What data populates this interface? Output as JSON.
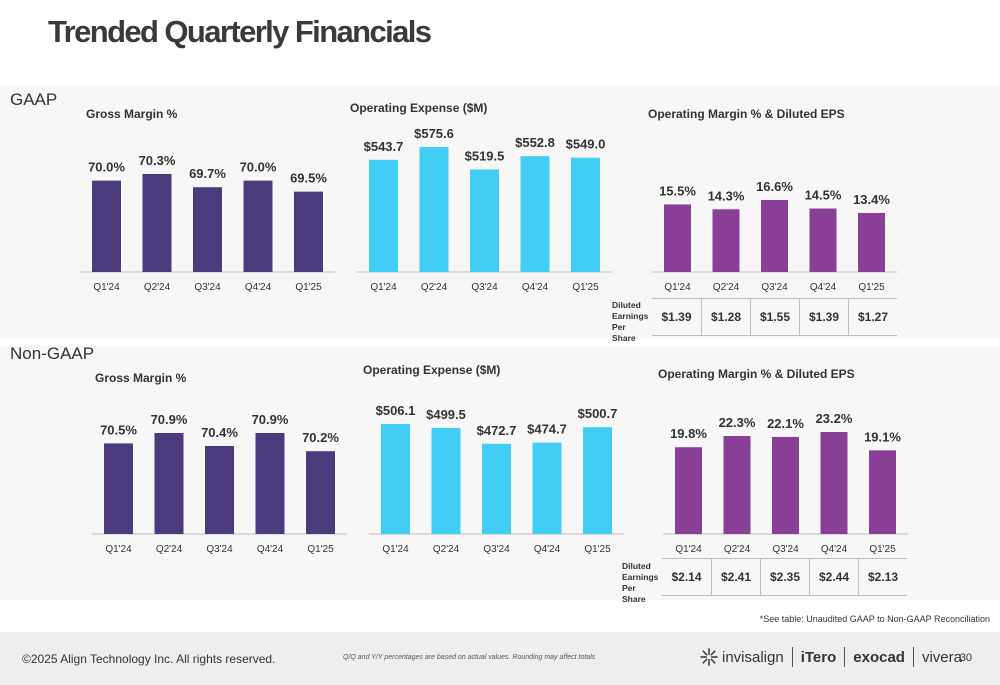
{
  "page": {
    "title": "Trended Quarterly Financials",
    "gaap_label": "GAAP",
    "nongaap_label": "Non-GAAP",
    "footnote": "*See table: Unaudited GAAP to Non-GAAP Reconciliation",
    "copyright": "©2025 Align Technology Inc. All rights reserved.",
    "disclaimer": "Q/Q and Y/Y percentages are based on actual values. Rounding may affect totals",
    "page_number": "30",
    "brands": [
      "invisalign",
      "iTero",
      "exocad",
      "vivera"
    ],
    "eps_label": [
      "Diluted",
      "Earnings",
      "Per Share"
    ]
  },
  "colors": {
    "gross_margin": "#4b3a7c",
    "opex": "#41cdf4",
    "op_margin": "#8a3f96",
    "band": "#f7f7f7"
  },
  "chart_data": [
    {
      "id": "gaap-gross-margin",
      "type": "bar",
      "title": "Gross Margin %",
      "categories": [
        "Q1'24",
        "Q2'24",
        "Q3'24",
        "Q4'24",
        "Q1'25"
      ],
      "values": [
        70.0,
        70.3,
        69.7,
        70.0,
        69.5
      ],
      "labels": [
        "70.0%",
        "70.3%",
        "69.7%",
        "70.0%",
        "69.5%"
      ],
      "color": "#4b3a7c"
    },
    {
      "id": "gaap-opex",
      "type": "bar",
      "title": "Operating Expense ($M)",
      "categories": [
        "Q1'24",
        "Q2'24",
        "Q3'24",
        "Q4'24",
        "Q1'25"
      ],
      "values": [
        543.7,
        575.6,
        519.5,
        552.8,
        549.0
      ],
      "labels": [
        "$543.7",
        "$575.6",
        "$519.5",
        "$552.8",
        "$549.0"
      ],
      "color": "#41cdf4"
    },
    {
      "id": "gaap-op-margin",
      "type": "bar",
      "title": "Operating Margin % & Diluted EPS",
      "categories": [
        "Q1'24",
        "Q2'24",
        "Q3'24",
        "Q4'24",
        "Q1'25"
      ],
      "values": [
        15.5,
        14.3,
        16.6,
        14.5,
        13.4
      ],
      "labels": [
        "15.5%",
        "14.3%",
        "16.6%",
        "14.5%",
        "13.4%"
      ],
      "eps": [
        "$1.39",
        "$1.28",
        "$1.55",
        "$1.39",
        "$1.27"
      ],
      "color": "#8a3f96"
    },
    {
      "id": "nongaap-gross-margin",
      "type": "bar",
      "title": "Gross Margin %",
      "categories": [
        "Q1'24",
        "Q2'24",
        "Q3'24",
        "Q4'24",
        "Q1'25"
      ],
      "values": [
        70.5,
        70.9,
        70.4,
        70.9,
        70.2
      ],
      "labels": [
        "70.5%",
        "70.9%",
        "70.4%",
        "70.9%",
        "70.2%"
      ],
      "color": "#4b3a7c"
    },
    {
      "id": "nongaap-opex",
      "type": "bar",
      "title": "Operating Expense ($M)",
      "categories": [
        "Q1'24",
        "Q2'24",
        "Q3'24",
        "Q4'24",
        "Q1'25"
      ],
      "values": [
        506.1,
        499.5,
        472.7,
        474.7,
        500.7
      ],
      "labels": [
        "$506.1",
        "$499.5",
        "$472.7",
        "$474.7",
        "$500.7"
      ],
      "color": "#41cdf4"
    },
    {
      "id": "nongaap-op-margin",
      "type": "bar",
      "title": "Operating Margin % & Diluted EPS",
      "categories": [
        "Q1'24",
        "Q2'24",
        "Q3'24",
        "Q4'24",
        "Q1'25"
      ],
      "values": [
        19.8,
        22.3,
        22.1,
        23.2,
        19.1
      ],
      "labels": [
        "19.8%",
        "22.3%",
        "22.1%",
        "23.2%",
        "19.1%"
      ],
      "eps": [
        "$2.14",
        "$2.41",
        "$2.35",
        "$2.44",
        "$2.13"
      ],
      "color": "#8a3f96"
    }
  ]
}
